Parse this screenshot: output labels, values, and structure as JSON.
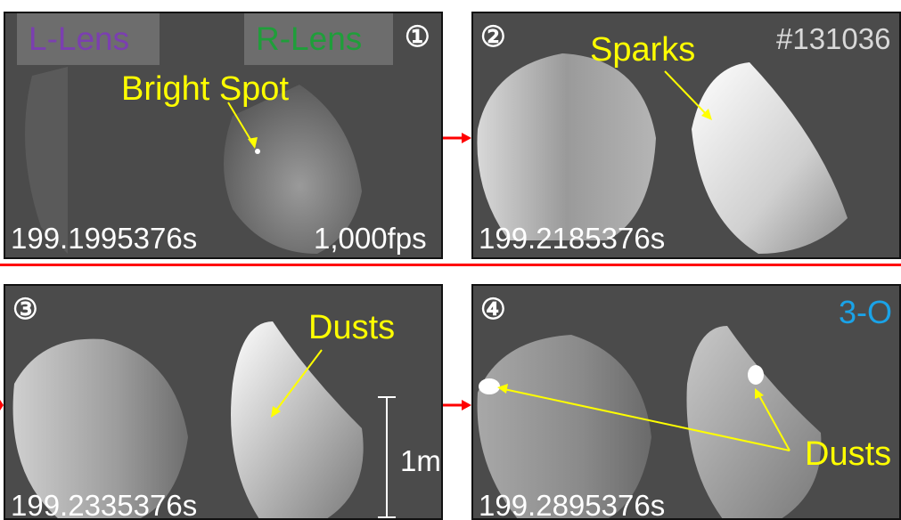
{
  "shot_id": "#131036",
  "colors": {
    "l_lens": "#7b3fb0",
    "r_lens": "#1f9e3a",
    "annotation": "#ffff00",
    "arrow": "#ff0000",
    "shot_id": "#d9d9d9",
    "config": "#1aa3e8"
  },
  "panels": [
    {
      "number": "①",
      "time": "199.1995376s",
      "fps": "1,000fps",
      "lens_left": "L-Lens",
      "lens_right": "R-Lens",
      "label": "Bright Spot"
    },
    {
      "number": "②",
      "time": "199.2185376s",
      "label": "Sparks"
    },
    {
      "number": "③",
      "time": "199.2335376s",
      "label": "Dusts",
      "scale": "1m"
    },
    {
      "number": "④",
      "time": "199.2895376s",
      "label": "Dusts",
      "config": "3-O"
    }
  ]
}
